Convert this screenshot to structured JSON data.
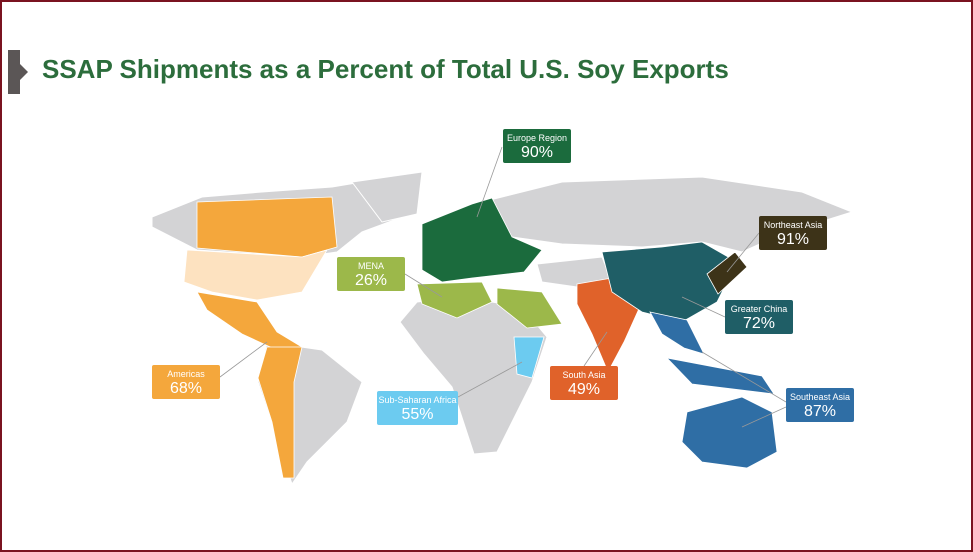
{
  "title": "SSAP Shipments as a Percent of Total U.S. Soy Exports",
  "regions": [
    {
      "name": "Europe Region",
      "value": "90%",
      "color": "#1b6b3d"
    },
    {
      "name": "Northeast Asia",
      "value": "91%",
      "color": "#3d3318"
    },
    {
      "name": "Greater China",
      "value": "72%",
      "color": "#1f5e66"
    },
    {
      "name": "MENA",
      "value": "26%",
      "color": "#9cb84a"
    },
    {
      "name": "Americas",
      "value": "68%",
      "color": "#f4a73c"
    },
    {
      "name": "Sub-Saharan Africa",
      "value": "55%",
      "color": "#6ccbf0"
    },
    {
      "name": "South Asia",
      "value": "49%",
      "color": "#e0622a"
    },
    {
      "name": "Southeast Asia",
      "value": "87%",
      "color": "#2f6ea5"
    }
  ]
}
